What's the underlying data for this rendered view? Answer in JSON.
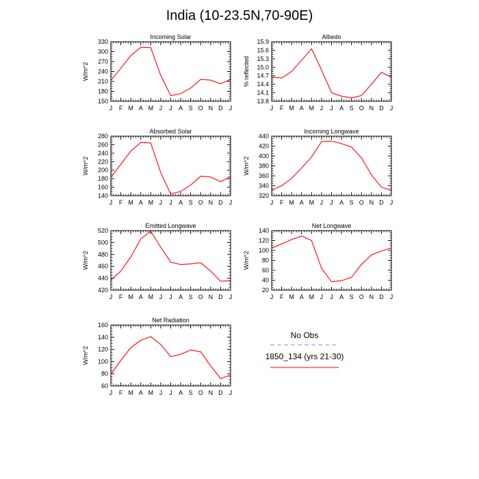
{
  "page": {
    "title": "India (10-23.5N,70-90E)"
  },
  "months": [
    "J",
    "F",
    "M",
    "A",
    "M",
    "J",
    "J",
    "A",
    "S",
    "O",
    "N",
    "D",
    "J"
  ],
  "legend": {
    "obs_label": "No Obs",
    "model_label": "1850_134 (yrs 21-30)",
    "obs_color": "#8080ff",
    "model_color": "#ff0000"
  },
  "chart_data": [
    {
      "type": "line",
      "title": "Incoming Solar",
      "ylabel": "W/m^2",
      "categories": [
        "J",
        "F",
        "M",
        "A",
        "M",
        "J",
        "J",
        "A",
        "S",
        "O",
        "N",
        "D",
        "J"
      ],
      "ylim": [
        150,
        330
      ],
      "yticks": [
        150,
        180,
        210,
        240,
        270,
        300,
        330
      ],
      "ytick_labels": [
        "150",
        "180",
        "210",
        "240",
        "270",
        "300",
        "330"
      ],
      "series": [
        {
          "values": [
            213,
            250,
            288,
            313,
            312,
            228,
            167,
            173,
            190,
            216,
            214,
            203,
            216
          ]
        }
      ]
    },
    {
      "type": "line",
      "title": "Albedo",
      "ylabel": "% reflected",
      "categories": [
        "J",
        "F",
        "M",
        "A",
        "M",
        "J",
        "J",
        "A",
        "S",
        "O",
        "N",
        "D",
        "J"
      ],
      "ylim": [
        13.8,
        15.9
      ],
      "yticks": [
        13.8,
        14.1,
        14.4,
        14.7,
        15.0,
        15.3,
        15.6,
        15.9
      ],
      "ytick_labels": [
        "13.8",
        "14.1",
        "14.4",
        "14.7",
        "15.0",
        "15.3",
        "15.6",
        "15.9"
      ],
      "series": [
        {
          "values": [
            14.65,
            14.62,
            14.85,
            15.25,
            15.65,
            14.9,
            14.1,
            13.98,
            13.92,
            14.0,
            14.4,
            14.82,
            14.65
          ]
        }
      ]
    },
    {
      "type": "line",
      "title": "Absorbed Solar",
      "ylabel": "W/m^2",
      "categories": [
        "J",
        "F",
        "M",
        "A",
        "M",
        "J",
        "J",
        "A",
        "S",
        "O",
        "N",
        "D",
        "J"
      ],
      "ylim": [
        140,
        280
      ],
      "yticks": [
        140,
        160,
        180,
        200,
        220,
        240,
        260,
        280
      ],
      "ytick_labels": [
        "140",
        "160",
        "180",
        "200",
        "220",
        "240",
        "260",
        "280"
      ],
      "series": [
        {
          "values": [
            183,
            214,
            245,
            265,
            264,
            194,
            144,
            150,
            165,
            186,
            184,
            173,
            185
          ]
        }
      ]
    },
    {
      "type": "line",
      "title": "Incoming Longwave",
      "ylabel": "W/m^2",
      "categories": [
        "J",
        "F",
        "M",
        "A",
        "M",
        "J",
        "J",
        "A",
        "S",
        "O",
        "N",
        "D",
        "J"
      ],
      "ylim": [
        320,
        440
      ],
      "yticks": [
        320,
        340,
        360,
        380,
        400,
        420,
        440
      ],
      "ytick_labels": [
        "320",
        "340",
        "360",
        "380",
        "400",
        "420",
        "440"
      ],
      "series": [
        {
          "values": [
            331,
            340,
            355,
            376,
            398,
            429,
            430,
            425,
            418,
            396,
            362,
            337,
            331
          ]
        }
      ]
    },
    {
      "type": "line",
      "title": "Emitted Longwave",
      "ylabel": "W/m^2",
      "categories": [
        "J",
        "F",
        "M",
        "A",
        "M",
        "J",
        "J",
        "A",
        "S",
        "O",
        "N",
        "D",
        "J"
      ],
      "ylim": [
        420,
        520
      ],
      "yticks": [
        420,
        440,
        460,
        480,
        500,
        520
      ],
      "ytick_labels": [
        "420",
        "440",
        "460",
        "480",
        "500",
        "520"
      ],
      "series": [
        {
          "values": [
            437,
            452,
            476,
            506,
            519,
            492,
            467,
            463,
            464,
            466,
            452,
            435,
            436
          ]
        }
      ]
    },
    {
      "type": "line",
      "title": "Net Longwave",
      "ylabel": "W/m^2",
      "categories": [
        "J",
        "F",
        "M",
        "A",
        "M",
        "J",
        "J",
        "A",
        "S",
        "O",
        "N",
        "D",
        "J"
      ],
      "ylim": [
        20,
        140
      ],
      "yticks": [
        20,
        40,
        60,
        80,
        100,
        120,
        140
      ],
      "ytick_labels": [
        "20",
        "40",
        "60",
        "80",
        "100",
        "120",
        "140"
      ],
      "series": [
        {
          "values": [
            105,
            113,
            122,
            129,
            120,
            64,
            37,
            39,
            46,
            72,
            91,
            99,
            105
          ]
        }
      ]
    },
    {
      "type": "line",
      "title": "Net Radiation",
      "ylabel": "W/m^2",
      "categories": [
        "J",
        "F",
        "M",
        "A",
        "M",
        "J",
        "J",
        "A",
        "S",
        "O",
        "N",
        "D",
        "J"
      ],
      "ylim": [
        60,
        160
      ],
      "yticks": [
        60,
        80,
        100,
        120,
        140,
        160
      ],
      "ytick_labels": [
        "60",
        "80",
        "100",
        "120",
        "140",
        "160"
      ],
      "series": [
        {
          "values": [
            79,
            102,
            123,
            135,
            141,
            128,
            108,
            112,
            119,
            116,
            93,
            72,
            78
          ]
        }
      ]
    }
  ]
}
